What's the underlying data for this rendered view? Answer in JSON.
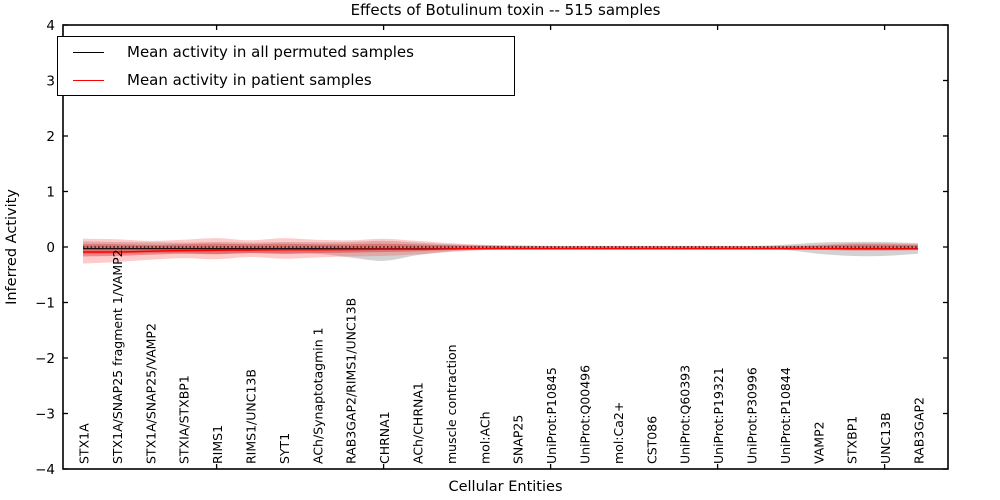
{
  "figure": {
    "title": "Effects of Botulinum toxin -- 515 samples",
    "xlabel": "Cellular Entities",
    "ylabel": "Inferred Activity"
  },
  "legend": {
    "position": "upper left",
    "items": [
      {
        "label": "Mean activity in all permuted samples",
        "color": "#000000"
      },
      {
        "label": "Mean activity in patient samples",
        "color": "#ff0000"
      }
    ]
  },
  "chart_data": {
    "type": "line",
    "title": "Effects of Botulinum toxin -- 515 samples",
    "xlabel": "Cellular Entities",
    "ylabel": "Inferred Activity",
    "ylim": [
      -4,
      4
    ],
    "yticks": [
      4,
      3,
      2,
      1,
      0,
      -1,
      -2,
      -3,
      -4
    ],
    "grid": false,
    "legend_position": "upper left",
    "x_top_tick_indices": [
      4,
      9,
      14,
      19,
      24
    ],
    "categories": [
      "STX1A",
      "STX1A/SNAP25 fragment 1/VAMP2",
      "STX1A/SNAP25/VAMP2",
      "STXIA/STXBP1",
      "RIMS1",
      "RIMS1/UNC13B",
      "SYT1",
      "ACh/Synaptotagmin 1",
      "RAB3GAP2/RIMS1/UNC13B",
      "CHRNA1",
      "ACh/CHRNA1",
      "muscle contraction",
      "mol:ACh",
      "SNAP25",
      "UniProt:P10845",
      "UniProt:Q00496",
      "mol:Ca2+",
      "CST086",
      "UniProt:Q60393",
      "UniProt:P19321",
      "UniProt:P30996",
      "UniProt:P10844",
      "VAMP2",
      "STXBP1",
      "UNC13B",
      "RAB3GAP2"
    ],
    "reference_line": {
      "value": 0,
      "style": "dotted",
      "color": "#000000"
    },
    "series": [
      {
        "name": "Mean activity in all permuted samples",
        "color": "#000000",
        "style": "solid",
        "values": [
          -0.03,
          -0.03,
          -0.03,
          -0.03,
          -0.03,
          -0.03,
          -0.03,
          -0.03,
          -0.03,
          -0.03,
          -0.03,
          -0.03,
          -0.03,
          -0.03,
          -0.03,
          -0.03,
          -0.03,
          -0.03,
          -0.03,
          -0.03,
          -0.03,
          -0.03,
          -0.03,
          -0.03,
          -0.03,
          -0.03
        ]
      },
      {
        "name": "Mean activity in patient samples",
        "color": "#ff0000",
        "style": "solid",
        "values": [
          -0.09,
          -0.09,
          -0.075,
          -0.065,
          -0.06,
          -0.055,
          -0.05,
          -0.05,
          -0.045,
          -0.04,
          -0.04,
          -0.035,
          -0.03,
          -0.03,
          -0.03,
          -0.03,
          -0.03,
          -0.03,
          -0.03,
          -0.03,
          -0.03,
          -0.03,
          -0.03,
          -0.035,
          -0.035,
          -0.035
        ]
      }
    ],
    "bands": [
      {
        "name": "permuted-samples-spread",
        "color": "#888888",
        "opacity": 0.38,
        "upper": [
          0.1,
          0.09,
          0.085,
          0.08,
          0.09,
          0.08,
          0.09,
          0.085,
          0.09,
          0.11,
          0.08,
          0.05,
          0.03,
          0.02,
          0.018,
          0.018,
          0.018,
          0.018,
          0.018,
          0.018,
          0.018,
          0.04,
          0.08,
          0.09,
          0.09,
          0.07
        ],
        "lower": [
          -0.13,
          -0.12,
          -0.11,
          -0.11,
          -0.12,
          -0.11,
          -0.12,
          -0.12,
          -0.19,
          -0.25,
          -0.15,
          -0.08,
          -0.045,
          -0.03,
          -0.025,
          -0.025,
          -0.025,
          -0.025,
          -0.025,
          -0.025,
          -0.025,
          -0.05,
          -0.12,
          -0.16,
          -0.16,
          -0.12
        ]
      },
      {
        "name": "patient-samples-spread-outer",
        "color": "#ff4040",
        "opacity": 0.28,
        "upper": [
          0.15,
          0.14,
          0.11,
          0.13,
          0.16,
          0.12,
          0.16,
          0.13,
          0.12,
          0.15,
          0.11,
          0.07,
          0.04,
          0.03,
          0.022,
          0.022,
          0.022,
          0.022,
          0.022,
          0.022,
          0.022,
          0.022,
          0.04,
          0.065,
          0.065,
          0.055
        ],
        "lower": [
          -0.3,
          -0.27,
          -0.23,
          -0.2,
          -0.22,
          -0.18,
          -0.21,
          -0.19,
          -0.17,
          -0.16,
          -0.13,
          -0.09,
          -0.055,
          -0.045,
          -0.035,
          -0.035,
          -0.035,
          -0.035,
          -0.035,
          -0.035,
          -0.035,
          -0.035,
          -0.05,
          -0.07,
          -0.07,
          -0.06
        ]
      },
      {
        "name": "patient-samples-spread-inner",
        "color": "#dd2222",
        "opacity": 0.4,
        "upper": [
          0.05,
          0.05,
          0.04,
          0.05,
          0.06,
          0.05,
          0.06,
          0.05,
          0.05,
          0.06,
          0.045,
          0.03,
          0.02,
          0.015,
          0.012,
          0.012,
          0.012,
          0.012,
          0.012,
          0.012,
          0.012,
          0.012,
          0.025,
          0.045,
          0.045,
          0.035
        ],
        "lower": [
          -0.17,
          -0.16,
          -0.14,
          -0.12,
          -0.13,
          -0.11,
          -0.12,
          -0.11,
          -0.1,
          -0.09,
          -0.075,
          -0.055,
          -0.035,
          -0.03,
          -0.025,
          -0.025,
          -0.025,
          -0.025,
          -0.025,
          -0.025,
          -0.025,
          -0.025,
          -0.035,
          -0.05,
          -0.05,
          -0.04
        ]
      }
    ]
  }
}
